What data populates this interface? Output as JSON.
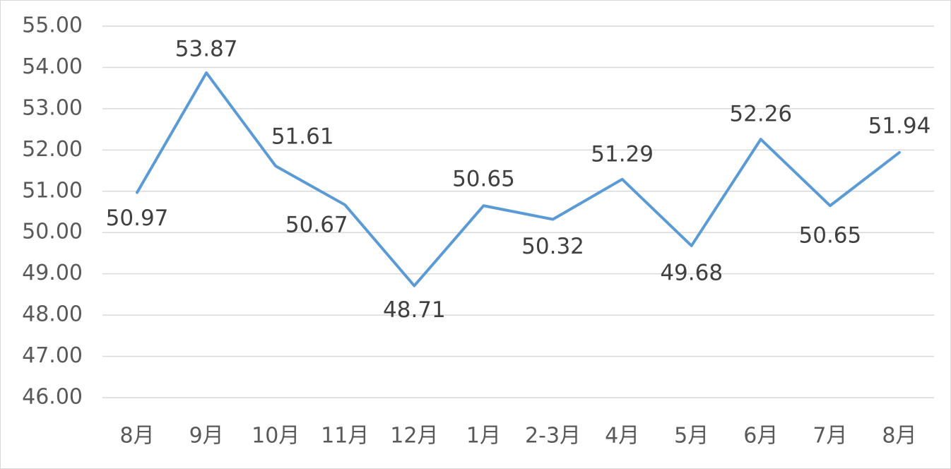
{
  "chart_data": {
    "type": "line",
    "categories": [
      "8月",
      "9月",
      "10月",
      "11月",
      "12月",
      "1月",
      "2-3月",
      "4月",
      "5月",
      "6月",
      "7月",
      "8月"
    ],
    "series": [
      {
        "color": "#5b9bd5",
        "values": [
          50.97,
          53.87,
          51.61,
          50.67,
          48.71,
          50.65,
          50.32,
          51.29,
          49.68,
          52.26,
          50.65,
          51.94
        ]
      }
    ],
    "ylim": [
      46,
      55
    ],
    "yticks": [
      {
        "value": 46,
        "label": "46.00"
      },
      {
        "value": 47,
        "label": "47.00"
      },
      {
        "value": 48,
        "label": "48.00"
      },
      {
        "value": 49,
        "label": "49.00"
      },
      {
        "value": 50,
        "label": "50.00"
      },
      {
        "value": 51,
        "label": "51.00"
      },
      {
        "value": 52,
        "label": "52.00"
      },
      {
        "value": 53,
        "label": "53.00"
      },
      {
        "value": 54,
        "label": "54.00"
      },
      {
        "value": 55,
        "label": "55.00"
      }
    ],
    "grid": true
  }
}
